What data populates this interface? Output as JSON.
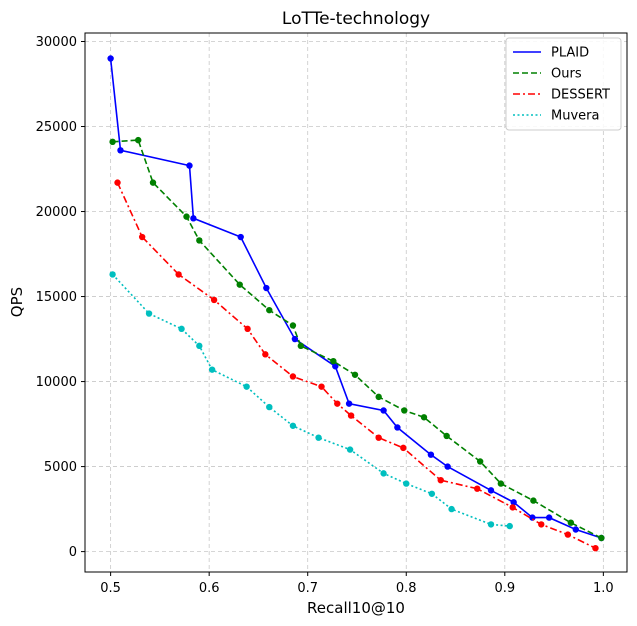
{
  "chart_data": {
    "type": "line",
    "title": "LoTTe-technology",
    "xlabel": "Recall10@10",
    "ylabel": "QPS",
    "xlim": [
      0.474,
      1.024
    ],
    "ylim": [
      -1200,
      30500
    ],
    "xticks": [
      0.5,
      0.6,
      0.7,
      0.8,
      0.9,
      1.0
    ],
    "xtick_labels": [
      "0.5",
      "0.6",
      "0.7",
      "0.8",
      "0.9",
      "1.0"
    ],
    "yticks": [
      0,
      5000,
      10000,
      15000,
      20000,
      25000,
      30000
    ],
    "ytick_labels": [
      "0",
      "5000",
      "10000",
      "15000",
      "20000",
      "25000",
      "30000"
    ],
    "grid": true,
    "legend_position": "top-right",
    "series": [
      {
        "name": "PLAID",
        "color": "#0000ff",
        "dash": "solid",
        "x": [
          0.5,
          0.51,
          0.58,
          0.584,
          0.632,
          0.658,
          0.687,
          0.728,
          0.742,
          0.777,
          0.791,
          0.825,
          0.842,
          0.886,
          0.909,
          0.928,
          0.945,
          0.972,
          0.998
        ],
        "y": [
          29000,
          23600,
          22700,
          19600,
          18500,
          15500,
          12500,
          10900,
          8700,
          8300,
          7300,
          5700,
          5000,
          3600,
          2900,
          2000,
          2000,
          1300,
          800
        ]
      },
      {
        "name": "Ours",
        "color": "#008000",
        "dash": "dashed",
        "x": [
          0.502,
          0.528,
          0.543,
          0.577,
          0.59,
          0.631,
          0.661,
          0.685,
          0.693,
          0.726,
          0.748,
          0.772,
          0.798,
          0.818,
          0.841,
          0.875,
          0.896,
          0.929,
          0.967,
          0.998
        ],
        "y": [
          24100,
          24200,
          21700,
          19700,
          18300,
          15700,
          14200,
          13300,
          12100,
          11200,
          10400,
          9100,
          8300,
          7900,
          6800,
          5300,
          4000,
          3000,
          1700,
          800
        ]
      },
      {
        "name": "DESSERT",
        "color": "#ff0000",
        "dash": "dashdot",
        "x": [
          0.507,
          0.532,
          0.569,
          0.605,
          0.639,
          0.657,
          0.685,
          0.714,
          0.73,
          0.744,
          0.772,
          0.797,
          0.835,
          0.872,
          0.908,
          0.937,
          0.964,
          0.992
        ],
        "y": [
          21700,
          18500,
          16300,
          14800,
          13100,
          11600,
          10300,
          9700,
          8700,
          8000,
          6700,
          6100,
          4200,
          3700,
          2600,
          1600,
          1000,
          200
        ]
      },
      {
        "name": "Muvera",
        "color": "#00bfbf",
        "dash": "dotted",
        "x": [
          0.502,
          0.539,
          0.572,
          0.59,
          0.603,
          0.638,
          0.661,
          0.685,
          0.711,
          0.743,
          0.777,
          0.8,
          0.826,
          0.846,
          0.886,
          0.905
        ],
        "y": [
          16300,
          14000,
          13100,
          12100,
          10700,
          9700,
          8500,
          7400,
          6700,
          6000,
          4600,
          4000,
          3400,
          2500,
          1600,
          1500
        ]
      }
    ]
  }
}
